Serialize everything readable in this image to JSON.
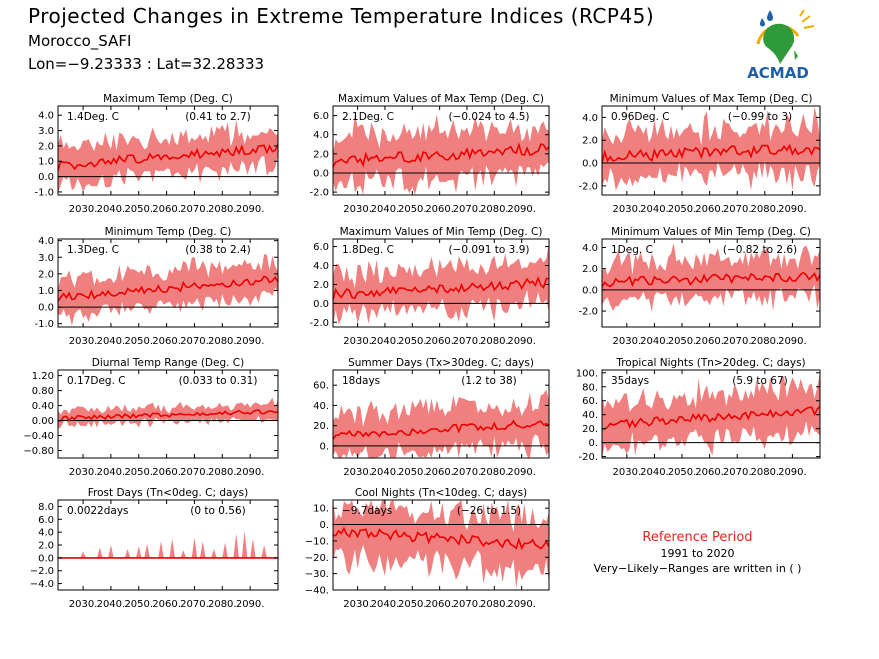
{
  "header": {
    "title": "Projected Changes in Extreme Temperature Indices (RCP45)",
    "location": "Morocco_SAFI",
    "coords": "Lon=−9.23333 : Lat=32.28333"
  },
  "logo": {
    "text": "ACMAD"
  },
  "reference": {
    "title": "Reference Period",
    "years": "1991 to 2020",
    "note": "Very−Likely−Ranges are written in ( )"
  },
  "colors": {
    "band": "#f08080",
    "mean": "#ee0000",
    "zero": "#000000",
    "ref": "#e8231e"
  },
  "chart_data": [
    {
      "type": "area",
      "title": "Maximum Temp (Deg. C)",
      "mean_label": "1.4Deg. C",
      "range_label": "(0.41 to 2.7)",
      "x": [
        2021,
        2100
      ],
      "xticks": [
        "2030.",
        "2040.",
        "2050.",
        "2060.",
        "2070.",
        "2080.",
        "2090."
      ],
      "ylim": [
        -1.2,
        4.6
      ],
      "yticks": [
        4.0,
        3.0,
        2.0,
        1.0,
        0.0,
        -1.0
      ],
      "ytick_labels": [
        "4.0",
        "3.0",
        "2.0",
        "1.0",
        "0.0",
        "-1.0"
      ],
      "mean_start": 0.7,
      "mean_end": 1.9,
      "band_width": 1.0,
      "noise": 0.3
    },
    {
      "type": "area",
      "title": "Maximum Values of Max Temp (Deg. C)",
      "mean_label": "2.1Deg. C",
      "range_label": "(−0.024 to 4.5)",
      "x": [
        2021,
        2100
      ],
      "xticks": [
        "2030.",
        "2040.",
        "2050.",
        "2060.",
        "2070.",
        "2080.",
        "2090."
      ],
      "ylim": [
        -2.3,
        7.0
      ],
      "yticks": [
        6.0,
        4.0,
        2.0,
        0.0,
        -2.0
      ],
      "ytick_labels": [
        "6.0",
        "4.0",
        "2.0",
        "0.0",
        "-2.0"
      ],
      "mean_start": 1.2,
      "mean_end": 2.6,
      "band_width": 2.2,
      "noise": 0.6
    },
    {
      "type": "area",
      "title": "Minimum Values of Max Temp (Deg. C)",
      "mean_label": "0.96Deg. C",
      "range_label": "(−0.99 to 3)",
      "x": [
        2021,
        2100
      ],
      "xticks": [
        "2030.",
        "2040.",
        "2050.",
        "2060.",
        "2070.",
        "2080.",
        "2090."
      ],
      "ylim": [
        -2.8,
        5.0
      ],
      "yticks": [
        4.0,
        2.0,
        0.0,
        -2.0
      ],
      "ytick_labels": [
        "4.0",
        "2.0",
        "0.0",
        "-2.0"
      ],
      "mean_start": 0.5,
      "mean_end": 1.3,
      "band_width": 1.8,
      "noise": 0.5
    },
    {
      "type": "area",
      "title": "Minimum Temp (Deg. C)",
      "mean_label": "1.3Deg. C",
      "range_label": "(0.38 to 2.4)",
      "x": [
        2021,
        2100
      ],
      "xticks": [
        "2030.",
        "2040.",
        "2050.",
        "2060.",
        "2070.",
        "2080.",
        "2090."
      ],
      "ylim": [
        -1.2,
        4.1
      ],
      "yticks": [
        4.0,
        3.0,
        2.0,
        1.0,
        0.0,
        -1.0
      ],
      "ytick_labels": [
        "4.0",
        "3.0",
        "2.0",
        "1.0",
        "0.0",
        "-1.0"
      ],
      "mean_start": 0.6,
      "mean_end": 1.7,
      "band_width": 0.9,
      "noise": 0.25
    },
    {
      "type": "area",
      "title": "Maximum Values of Min Temp (Deg. C)",
      "mean_label": "1.8Deg. C",
      "range_label": "(−0.091 to 3.9)",
      "x": [
        2021,
        2100
      ],
      "xticks": [
        "2030.",
        "2040.",
        "2050.",
        "2060.",
        "2070.",
        "2080.",
        "2090."
      ],
      "ylim": [
        -2.5,
        6.8
      ],
      "yticks": [
        6.0,
        4.0,
        2.0,
        0.0,
        -2.0
      ],
      "ytick_labels": [
        "6.0",
        "4.0",
        "2.0",
        "0.0",
        "-2.0"
      ],
      "mean_start": 0.9,
      "mean_end": 2.2,
      "band_width": 1.9,
      "noise": 0.55
    },
    {
      "type": "area",
      "title": "Minimum Values of Min Temp (Deg. C)",
      "mean_label": "1Deg. C",
      "range_label": "(−0.82 to 2.6)",
      "x": [
        2021,
        2100
      ],
      "xticks": [
        "2030.",
        "2040.",
        "2050.",
        "2060.",
        "2070.",
        "2080.",
        "2090."
      ],
      "ylim": [
        -3.5,
        4.8
      ],
      "yticks": [
        4.0,
        2.0,
        0.0,
        -2.0
      ],
      "ytick_labels": [
        "4.0",
        "2.0",
        "0.0",
        "-2.0"
      ],
      "mean_start": 0.7,
      "mean_end": 1.3,
      "band_width": 1.6,
      "noise": 0.45
    },
    {
      "type": "area",
      "title": "Diurnal Temp Range (Deg. C)",
      "mean_label": "0.17Deg. C",
      "range_label": "(0.033 to 0.31)",
      "x": [
        2021,
        2100
      ],
      "xticks": [
        "2030.",
        "2040.",
        "2050.",
        "2060.",
        "2070.",
        "2080.",
        "2090."
      ],
      "ylim": [
        -1.0,
        1.35
      ],
      "yticks": [
        1.2,
        0.8,
        0.4,
        0.0,
        -0.4,
        -0.8
      ],
      "ytick_labels": [
        "1.20",
        "0.80",
        "0.40",
        "0.00",
        "−0.40",
        "−0.80"
      ],
      "mean_start": 0.05,
      "mean_end": 0.25,
      "band_width": 0.18,
      "noise": 0.06
    },
    {
      "type": "area",
      "title": "Summer Days (Tx>30deg. C; days)",
      "mean_label": "18days",
      "range_label": "(1.2 to 38)",
      "x": [
        2021,
        2100
      ],
      "xticks": [
        "2030.",
        "2040.",
        "2050.",
        "2060.",
        "2070.",
        "2080.",
        "2090."
      ],
      "ylim": [
        -12,
        75
      ],
      "yticks": [
        60,
        40,
        20,
        0
      ],
      "ytick_labels": [
        "60.",
        "40.",
        "20.",
        "0."
      ],
      "mean_start": 10,
      "mean_end": 23,
      "band_width": 18,
      "noise": 4
    },
    {
      "type": "area",
      "title": "Tropical Nights (Tn>20deg. C; days)",
      "mean_label": "35days",
      "range_label": "(5.9 to 67)",
      "x": [
        2021,
        2100
      ],
      "xticks": [
        "2030.",
        "2040.",
        "2050.",
        "2060.",
        "2070.",
        "2080.",
        "2090."
      ],
      "ylim": [
        -22,
        104
      ],
      "yticks": [
        100,
        80,
        60,
        40,
        20,
        0,
        -20
      ],
      "ytick_labels": [
        "100.",
        "80.",
        "60.",
        "40.",
        "20.",
        "0.",
        "-20."
      ],
      "mean_start": 25,
      "mean_end": 47,
      "band_width": 28,
      "noise": 6
    },
    {
      "type": "area",
      "title": "Frost Days (Tn<0deg. C; days)",
      "mean_label": "0.0022days",
      "range_label": "(0 to 0.56)",
      "x": [
        2021,
        2100
      ],
      "xticks": [
        "2030.",
        "2040.",
        "2050.",
        "2060.",
        "2070.",
        "2080.",
        "2090."
      ],
      "ylim": [
        -5.0,
        9.0
      ],
      "yticks": [
        8.0,
        6.0,
        4.0,
        2.0,
        0.0,
        -2.0,
        -4.0
      ],
      "ytick_labels": [
        "8.0",
        "6.0",
        "4.0",
        "2.0",
        "0.0",
        "−2.0",
        "−4.0"
      ],
      "mean_start": 0.0,
      "mean_end": 0.0,
      "band_width": 0,
      "noise": 0,
      "spikes": true
    },
    {
      "type": "area",
      "title": "Cool Nights (Tn<10deg. C; days)",
      "mean_label": "−9.7days",
      "range_label": "(−26 to 1.5)",
      "x": [
        2021,
        2100
      ],
      "xticks": [
        "2030.",
        "2040.",
        "2050.",
        "2060.",
        "2070.",
        "2080.",
        "2090."
      ],
      "ylim": [
        -40,
        15
      ],
      "yticks": [
        10,
        0,
        -10,
        -20,
        -30,
        -40
      ],
      "ytick_labels": [
        "10.",
        "0.",
        "−10.",
        "−20.",
        "−30.",
        "−40."
      ],
      "mean_start": -4,
      "mean_end": -13,
      "band_width": 14,
      "noise": 3
    }
  ]
}
